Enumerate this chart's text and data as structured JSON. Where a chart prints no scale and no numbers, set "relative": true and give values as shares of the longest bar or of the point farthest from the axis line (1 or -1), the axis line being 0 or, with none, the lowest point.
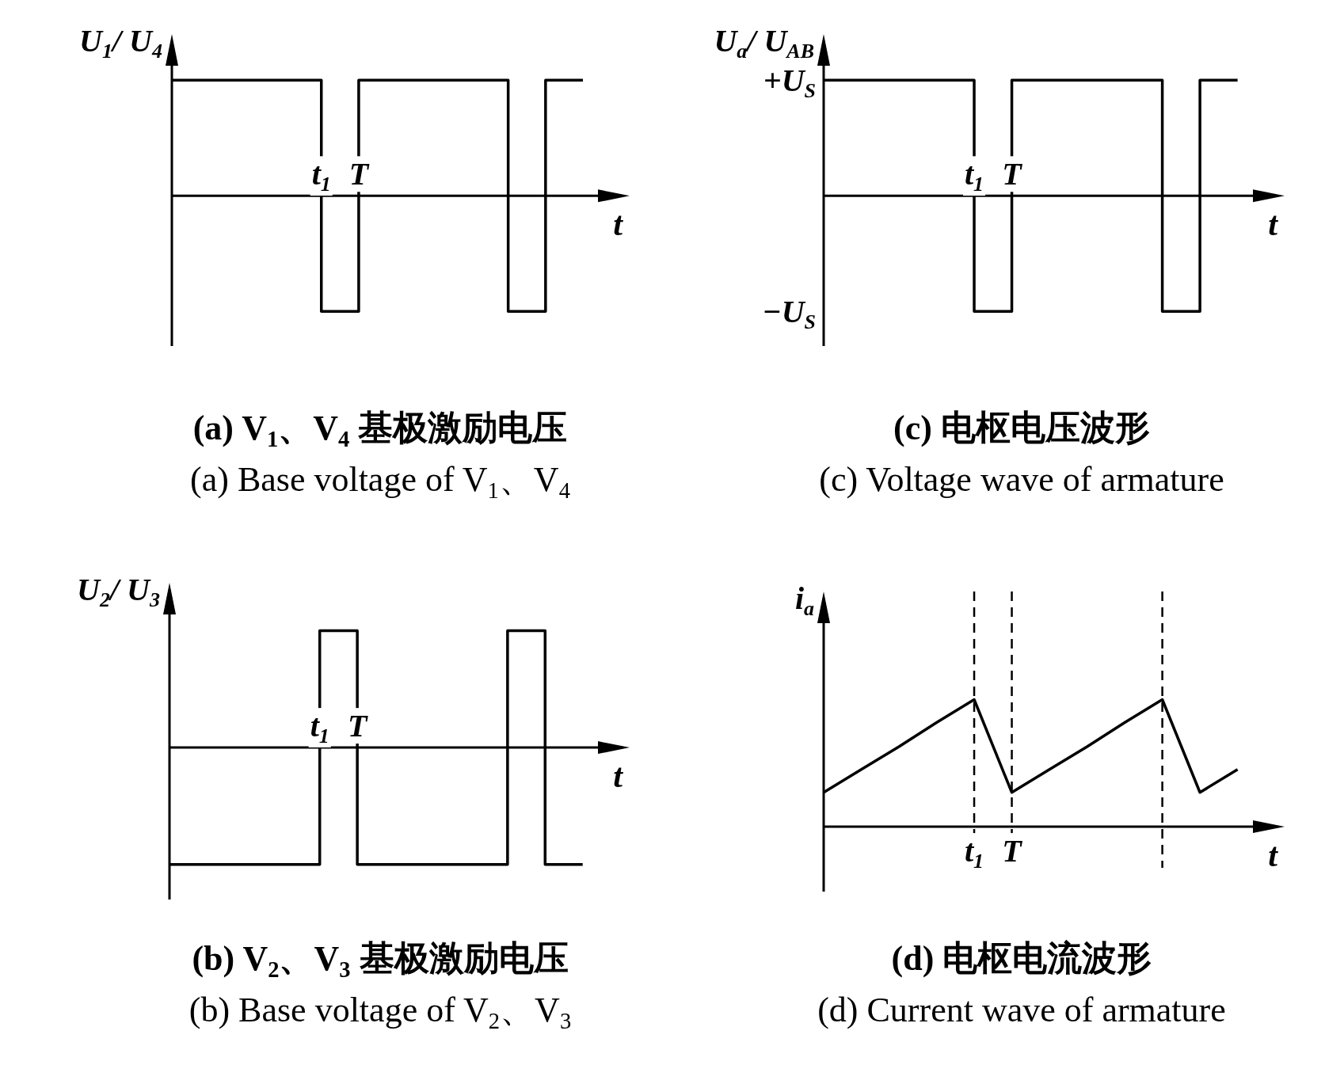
{
  "chart_data": [
    {
      "type": "step",
      "title": "(a) V$_{1}$、V$_{4}$ 基极激励电压",
      "subtitle": "(a) Base voltage of V$_{1}$、V$_{4}$",
      "xlabel": "t",
      "ylabel": "U$_{1}$/ U$_{4}$",
      "relative": true,
      "categories": [
        null,
        null,
        null,
        null,
        "t$_{1}$",
        "T",
        null,
        null,
        null,
        null,
        null,
        null,
        null
      ],
      "series": [
        {
          "color": "#000000",
          "values": [
            1,
            1,
            1,
            1,
            -1,
            1,
            1,
            1,
            1,
            -1,
            1,
            1,
            null
          ]
        }
      ]
    },
    {
      "type": "step",
      "title": "(c) 电枢电压波形",
      "subtitle": "(c) Voltage wave of armature",
      "xlabel": "t",
      "ylabel": "U$_{a}$/ U$_{AB}$",
      "relative": true,
      "annotations": [
        "+U$_{S}$",
        "−U$_{S}$"
      ],
      "categories": [
        null,
        null,
        null,
        null,
        "t$_{1}$",
        "T",
        null,
        null,
        null,
        null,
        null,
        null,
        null
      ],
      "series": [
        {
          "color": "#000000",
          "values": [
            1,
            1,
            1,
            1,
            -1,
            1,
            1,
            1,
            1,
            -1,
            1,
            1,
            null
          ]
        }
      ]
    },
    {
      "type": "step",
      "title": "(b) V$_{2}$、V$_{3}$ 基极激励电压",
      "subtitle": "(b) Base voltage of V$_{2}$、V$_{3}$",
      "xlabel": "t",
      "ylabel": "U$_{2}$/ U$_{3}$",
      "relative": true,
      "categories": [
        null,
        null,
        null,
        null,
        "t$_{1}$",
        "T",
        null,
        null,
        null,
        null,
        null,
        null,
        null
      ],
      "series": [
        {
          "color": "#000000",
          "values": [
            -1,
            -1,
            -1,
            -1,
            1,
            -1,
            -1,
            -1,
            -1,
            1,
            -1,
            -1,
            null
          ]
        }
      ]
    },
    {
      "type": "line",
      "title": "(d) 电枢电流波形",
      "subtitle": "(d) Current wave of armature",
      "xlabel": "t",
      "ylabel": "i$_{a}$",
      "relative": true,
      "categories": [
        null,
        null,
        null,
        null,
        "t$_{1}$",
        "T",
        null,
        null,
        null,
        null,
        null,
        null,
        null
      ],
      "series": [
        {
          "color": "#000000",
          "values": [
            0.27,
            0.45,
            0.63,
            0.82,
            1,
            0.27,
            0.45,
            0.63,
            0.82,
            1,
            0.27,
            0.45,
            null
          ]
        }
      ],
      "grid": "x"
    }
  ]
}
